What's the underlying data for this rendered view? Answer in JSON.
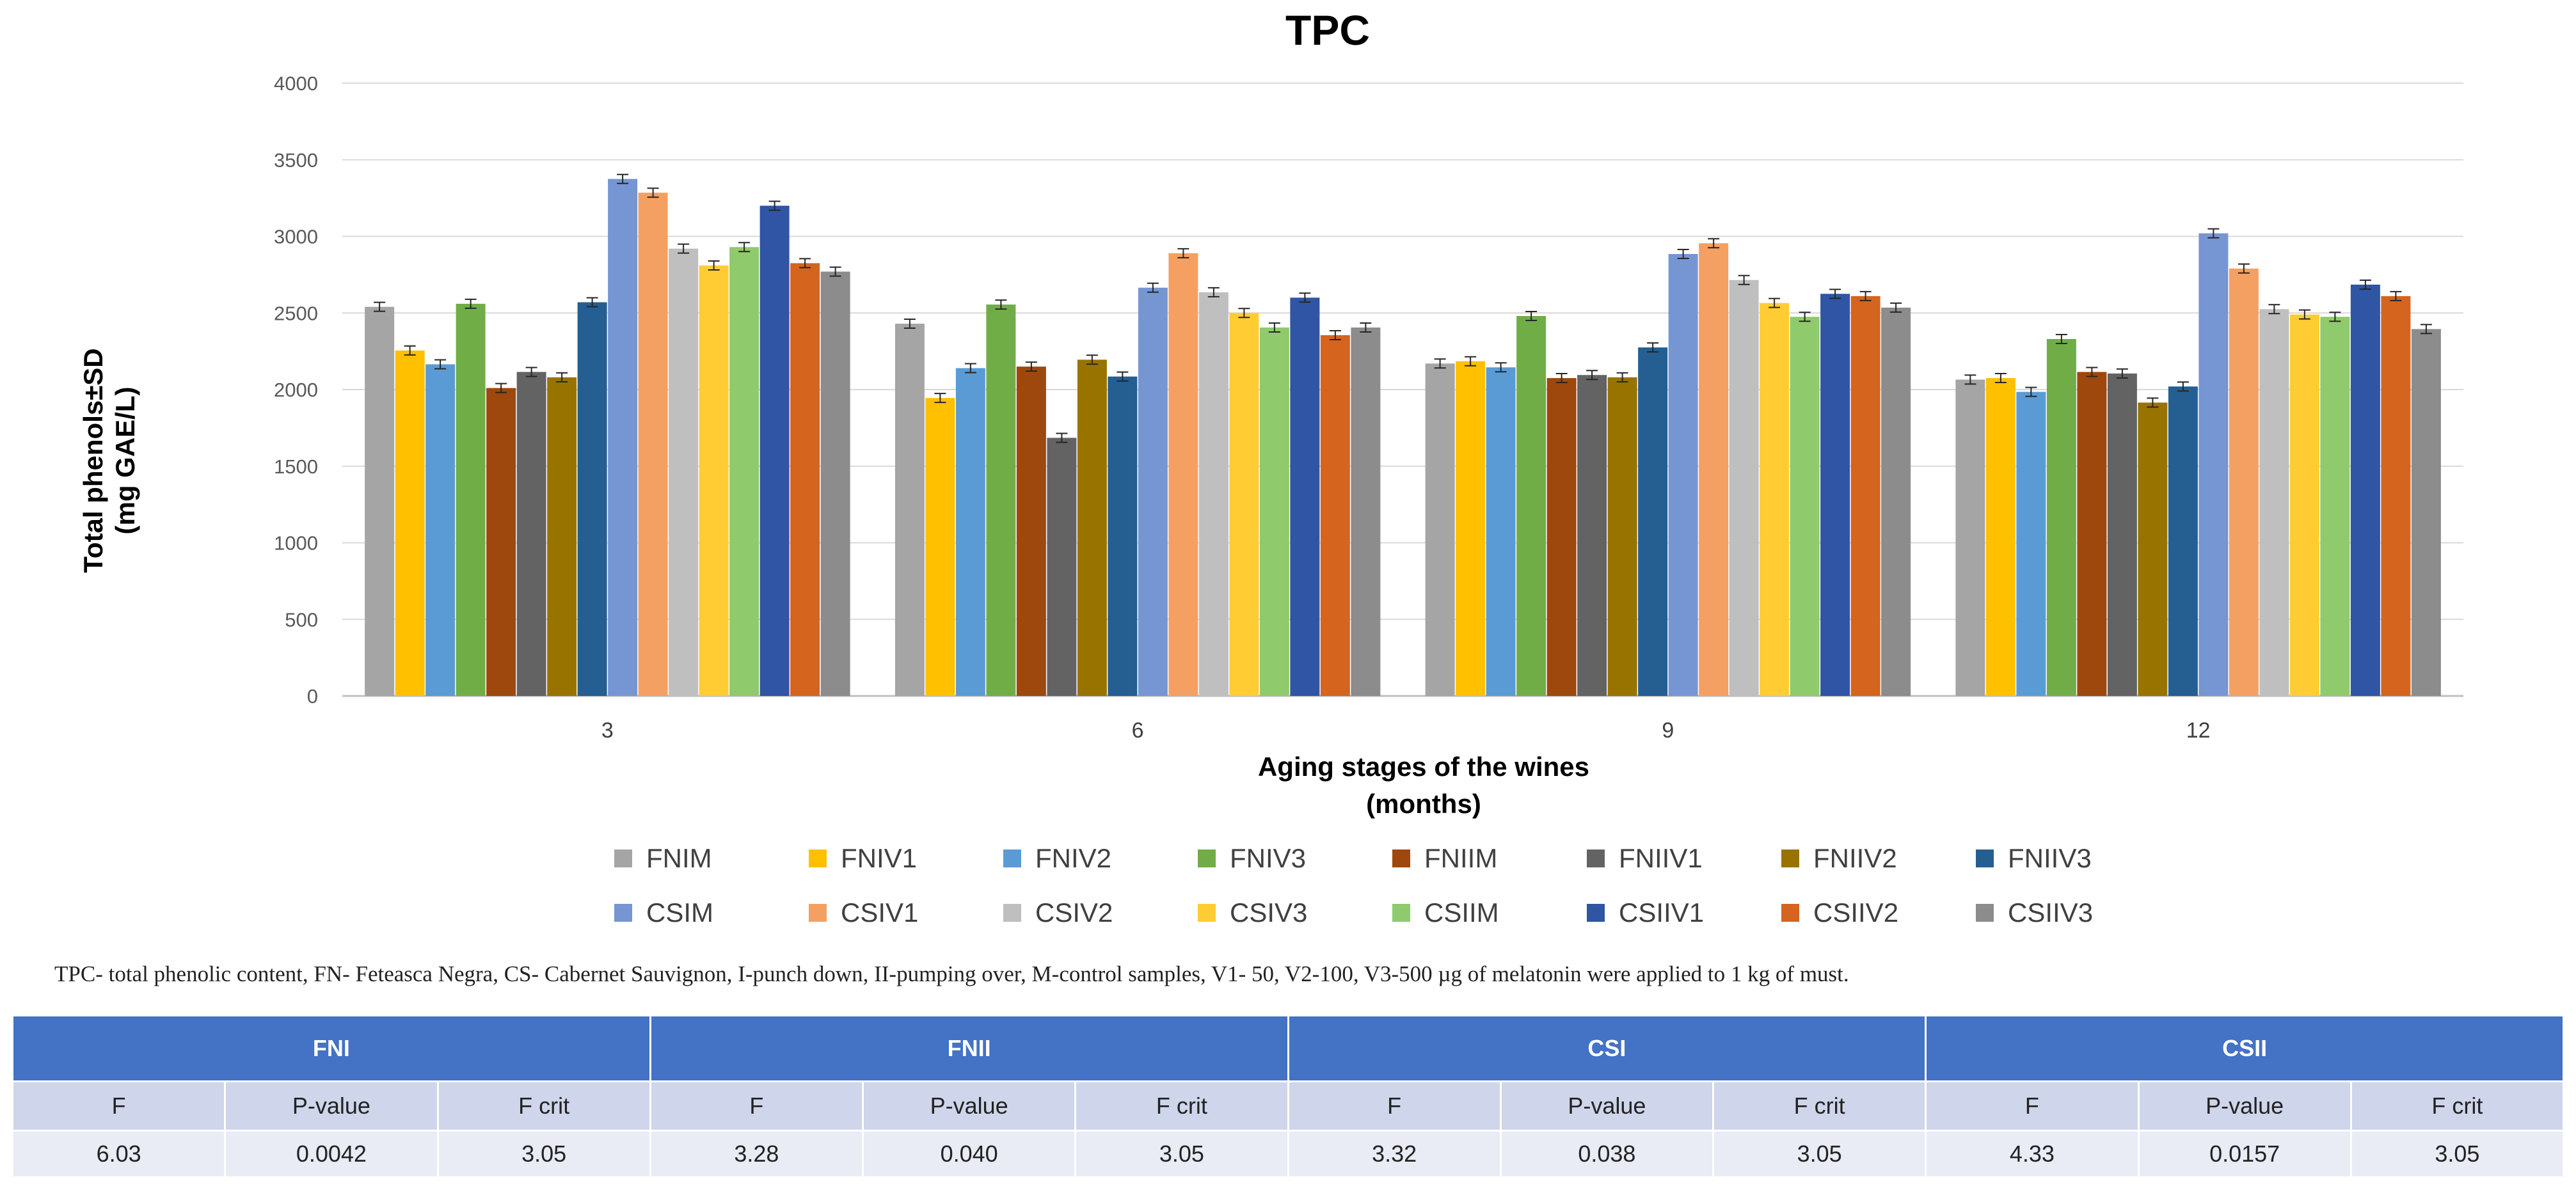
{
  "chart_data": {
    "type": "bar",
    "title": "TPC",
    "xlabel": "Aging stages of the wines\n(months)",
    "ylabel": "Total phenols±SD\n(mg GAE/L)",
    "ylim": [
      0,
      4000
    ],
    "yticks": [
      0,
      500,
      1000,
      1500,
      2000,
      2500,
      3000,
      3500,
      4000
    ],
    "grid": true,
    "legend_position": "bottom",
    "categories": [
      "3",
      "6",
      "9",
      "12"
    ],
    "series": [
      {
        "name": "FNIM",
        "color": "#a5a5a5",
        "values": [
          2540,
          2430,
          2170,
          2065
        ]
      },
      {
        "name": "FNIV1",
        "color": "#ffc000",
        "values": [
          2255,
          1945,
          2185,
          2075
        ]
      },
      {
        "name": "FNIV2",
        "color": "#5b9bd5",
        "values": [
          2165,
          2140,
          2145,
          1985
        ]
      },
      {
        "name": "FNIV3",
        "color": "#70ad47",
        "values": [
          2560,
          2555,
          2480,
          2330
        ]
      },
      {
        "name": "FNIIM",
        "color": "#9e480e",
        "values": [
          2010,
          2150,
          2075,
          2115
        ]
      },
      {
        "name": "FNIIV1",
        "color": "#636363",
        "values": [
          2115,
          1685,
          2095,
          2105
        ]
      },
      {
        "name": "FNIIV2",
        "color": "#997300",
        "values": [
          2080,
          2195,
          2080,
          1915
        ]
      },
      {
        "name": "FNIIV3",
        "color": "#255e91",
        "values": [
          2570,
          2085,
          2275,
          2020
        ]
      },
      {
        "name": "CSIM",
        "color": "#7596d3",
        "values": [
          3375,
          2665,
          2885,
          3020
        ]
      },
      {
        "name": "CSIV1",
        "color": "#f4a062",
        "values": [
          3285,
          2890,
          2955,
          2790
        ]
      },
      {
        "name": "CSIV2",
        "color": "#bfbfbf",
        "values": [
          2920,
          2635,
          2715,
          2525
        ]
      },
      {
        "name": "CSIV3",
        "color": "#ffcd33",
        "values": [
          2810,
          2500,
          2565,
          2490
        ]
      },
      {
        "name": "CSIIM",
        "color": "#8fca6d",
        "values": [
          2930,
          2405,
          2475,
          2475
        ]
      },
      {
        "name": "CSIIV1",
        "color": "#2f55a4",
        "values": [
          3200,
          2600,
          2625,
          2685
        ]
      },
      {
        "name": "CSIIV2",
        "color": "#d5641e",
        "values": [
          2825,
          2355,
          2610,
          2610
        ]
      },
      {
        "name": "CSIIV3",
        "color": "#8c8c8c",
        "values": [
          2770,
          2405,
          2535,
          2395
        ]
      }
    ]
  },
  "footnote": "TPC- total phenolic content, FN- Feteasca Negra, CS- Cabernet Sauvignon, I-punch down, II-pumping over, M-control samples, V1- 50, V2-100, V3-500 µg of melatonin were applied to 1 kg of must.",
  "table": {
    "groups": [
      "FNI",
      "FNII",
      "CSI",
      "CSII"
    ],
    "subheaders": [
      "F",
      "P-value",
      "F crit"
    ],
    "rows": [
      {
        "F": "6.03",
        "P": "0.0042",
        "Fcrit": "3.05"
      },
      {
        "F": "3.28",
        "P": "0.040",
        "Fcrit": "3.05"
      },
      {
        "F": "3.32",
        "P": "0.038",
        "Fcrit": "3.05"
      },
      {
        "F": "4.33",
        "P": "0.0157",
        "Fcrit": "3.05"
      }
    ]
  }
}
